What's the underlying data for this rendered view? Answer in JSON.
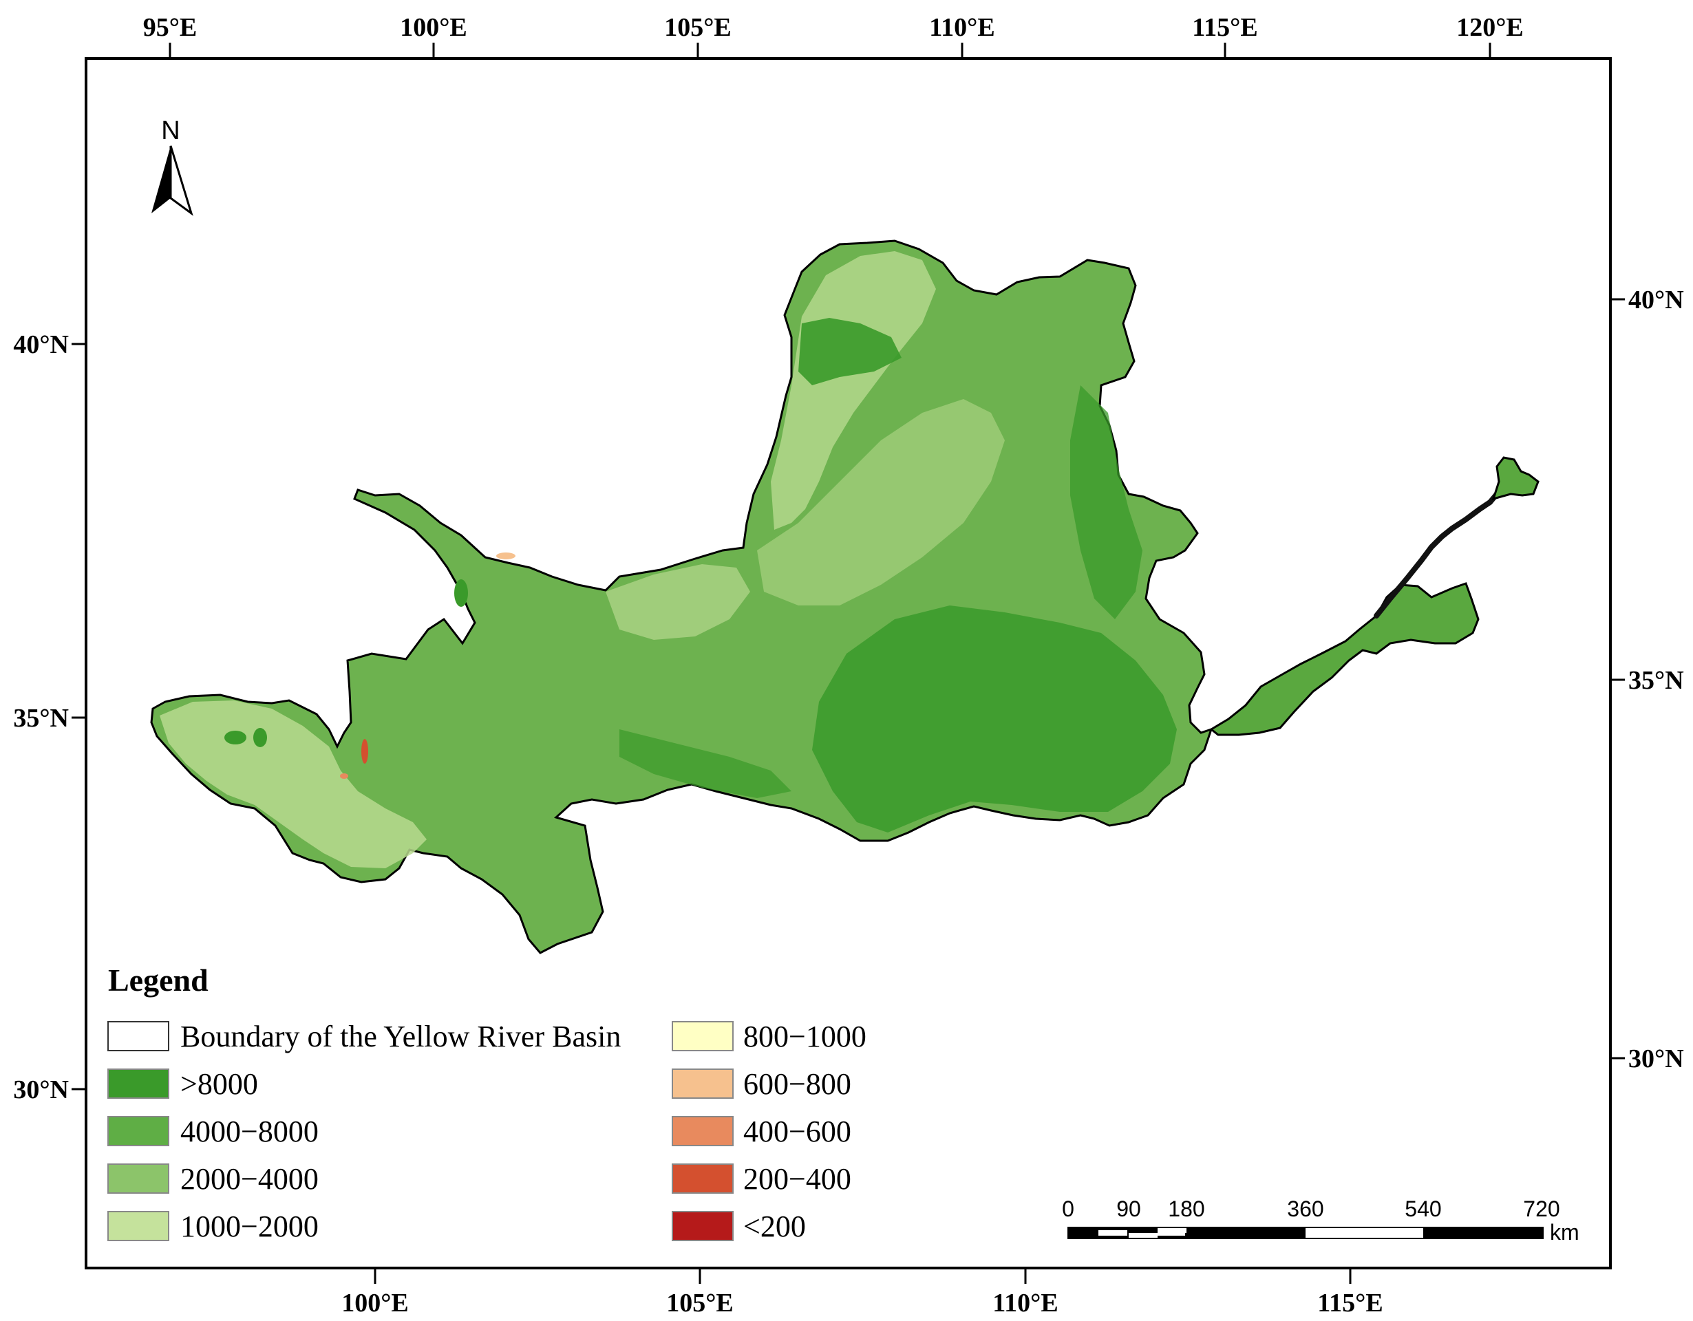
{
  "map": {
    "top_lon_labels": [
      "95°E",
      "100°E",
      "105°E",
      "110°E",
      "115°E",
      "120°E"
    ],
    "bottom_lon_labels": [
      "100°E",
      "105°E",
      "110°E",
      "115°E"
    ],
    "left_lat_labels": [
      "40°N",
      "35°N",
      "30°N"
    ],
    "right_lat_labels": [
      "40°N",
      "35°N",
      "30°N"
    ],
    "north_label": "N"
  },
  "legend": {
    "title": "Legend",
    "items": [
      {
        "label": "Boundary of the Yellow River Basin",
        "color": "#ffffff"
      },
      {
        "label": ">8000",
        "color": "#3a9a2a"
      },
      {
        "label": "4000−8000",
        "color": "#5fae45"
      },
      {
        "label": "2000−4000",
        "color": "#8cc46a"
      },
      {
        "label": "1000−2000",
        "color": "#c5e29c"
      },
      {
        "label": "800−1000",
        "color": "#ffffc4"
      },
      {
        "label": "600−800",
        "color": "#f6c18e"
      },
      {
        "label": "400−600",
        "color": "#e88a5e"
      },
      {
        "label": "200−400",
        "color": "#d4502f"
      },
      {
        "label": "<200",
        "color": "#b51a1a"
      }
    ]
  },
  "scale_bar": {
    "labels": [
      "0",
      "90",
      "180",
      "360",
      "540",
      "720"
    ],
    "unit": "km"
  },
  "colors": {
    "boundary": "#000000",
    "basin_base": "#6db24f"
  }
}
